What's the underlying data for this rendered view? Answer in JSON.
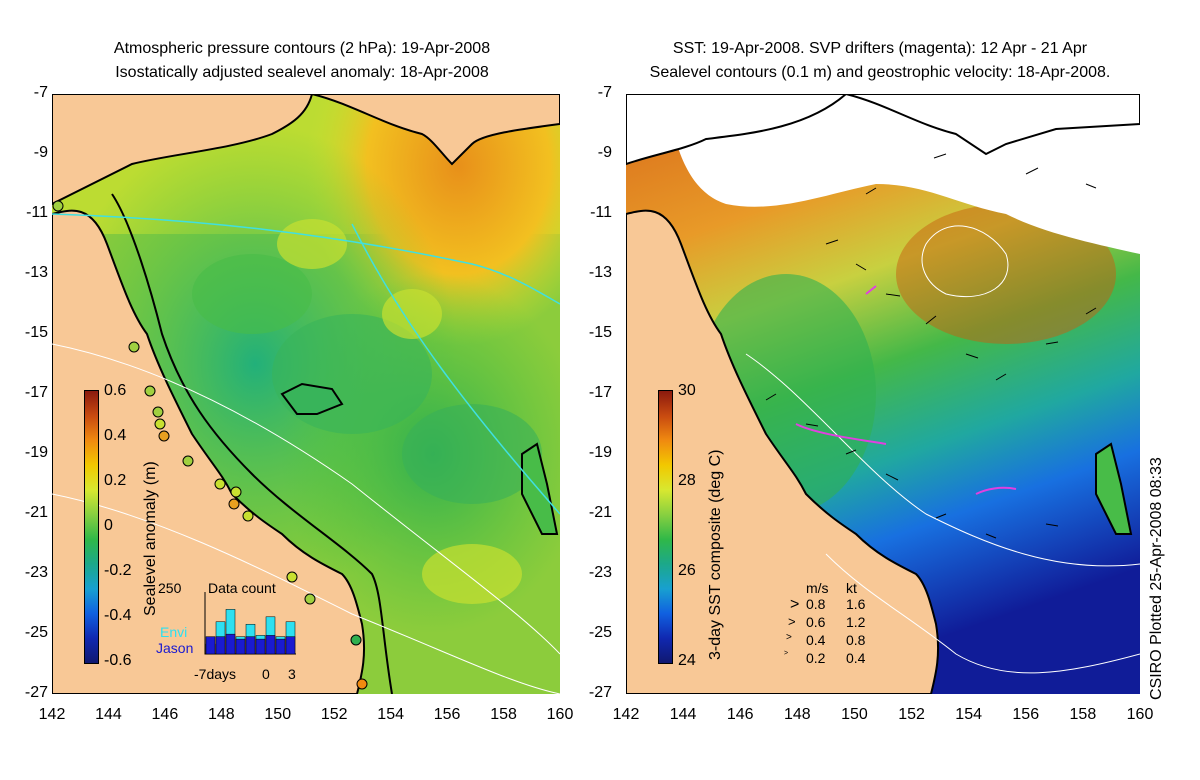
{
  "left": {
    "title_line1": "Atmospheric pressure contours (2 hPa): 19-Apr-2008",
    "title_line2": "Isostatically adjusted sealevel anomaly: 18-Apr-2008",
    "colorbar_label": "Sealevel anomaly (m)",
    "colorbar_ticks": [
      "0.6",
      "0.4",
      "0.2",
      "0",
      "-0.2",
      "-0.4",
      "-0.6"
    ],
    "colorbar_colors": [
      "#8b1a0e",
      "#c84a10",
      "#f08a10",
      "#f2c800",
      "#d8e830",
      "#88d040",
      "#30b848",
      "#1ca88a",
      "#18a0d0",
      "#1060e0",
      "#1028b0",
      "#101870"
    ],
    "data_count": {
      "title": "Data count",
      "max_label": "250",
      "envi_label": "Envi",
      "jason_label": "Jason",
      "x_labels": [
        "-7days",
        "0",
        "3"
      ],
      "envi_values": [
        40,
        130,
        180,
        70,
        120,
        75,
        150,
        70,
        130
      ],
      "jason_values": [
        70,
        70,
        80,
        60,
        70,
        60,
        75,
        60,
        70
      ],
      "colors": {
        "envi": "#2ee0f0",
        "jason": "#1a1ad0"
      }
    }
  },
  "right": {
    "title_line1": "SST: 19-Apr-2008. SVP drifters (magenta): 12 Apr - 21 Apr",
    "title_line2": "Sealevel contours (0.1 m) and geostrophic velocity: 18-Apr-2008.",
    "colorbar_label": "3-day SST composite (deg C)",
    "colorbar_ticks": [
      "30",
      "28",
      "26",
      "24"
    ],
    "colorbar_colors": [
      "#8b1a0e",
      "#c84a10",
      "#f08a10",
      "#f2c800",
      "#d8e830",
      "#88d040",
      "#30b848",
      "#1ca88a",
      "#18a0d0",
      "#1060e0",
      "#1028b0",
      "#101870"
    ],
    "velocity_legend": {
      "header_ms": "m/s",
      "header_kt": "kt",
      "rows": [
        {
          "ms": "0.8",
          "kt": "1.6"
        },
        {
          "ms": "0.6",
          "kt": "1.2"
        },
        {
          "ms": "0.4",
          "kt": "0.8"
        },
        {
          "ms": "0.2",
          "kt": "0.4"
        }
      ]
    },
    "credit": "CSIRO Plotted 25-Apr-2008 08:33"
  },
  "axes": {
    "y_ticks": [
      "-7",
      "-9",
      "-11",
      "-13",
      "-15",
      "-17",
      "-19",
      "-21",
      "-23",
      "-25",
      "-27"
    ],
    "x_ticks": [
      "142",
      "144",
      "146",
      "148",
      "150",
      "152",
      "154",
      "156",
      "158",
      "160"
    ]
  },
  "colors": {
    "land": "#f8c896",
    "ocean_left": "#9ad43c",
    "ocean_right_north": "#d2762a",
    "ocean_right_south": "#1838c8"
  }
}
